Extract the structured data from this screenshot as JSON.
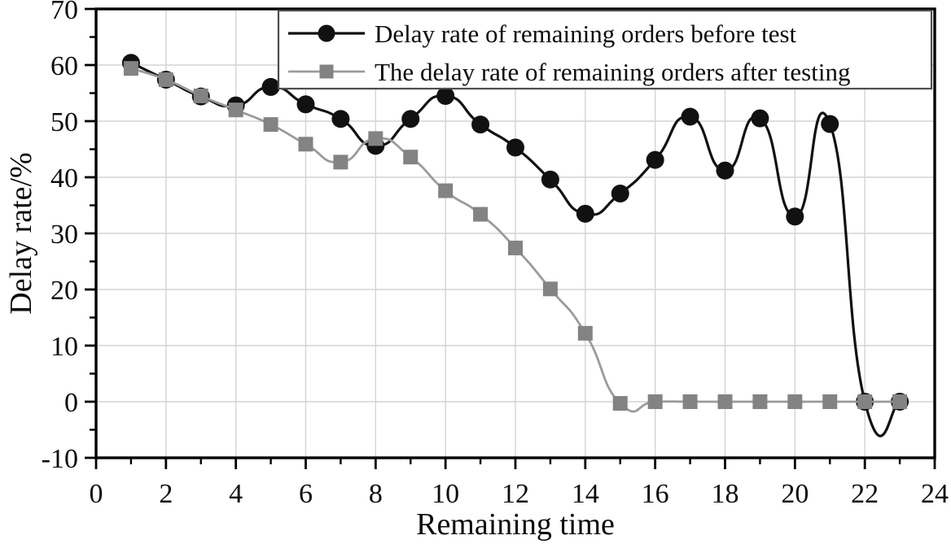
{
  "chart_data": {
    "type": "line",
    "title": "",
    "xlabel": "Remaining time",
    "ylabel": "Delay rate/%",
    "xlim": [
      0,
      24
    ],
    "ylim": [
      -10,
      70
    ],
    "x_ticks_major": [
      0,
      2,
      4,
      6,
      8,
      10,
      12,
      14,
      16,
      18,
      20,
      22,
      24
    ],
    "x_ticks_minor": [
      1,
      3,
      5,
      7,
      9,
      11,
      13,
      15,
      17,
      19,
      21,
      23
    ],
    "y_ticks_major": [
      -10,
      0,
      10,
      20,
      30,
      40,
      50,
      60,
      70
    ],
    "y_ticks_minor": [
      -5,
      5,
      15,
      25,
      35,
      45,
      55,
      65
    ],
    "grid": true,
    "grid_x_step": 2,
    "grid_y_step": 10,
    "legend_position": "top-inside",
    "x": [
      1,
      2,
      3,
      4,
      5,
      6,
      7,
      8,
      9,
      10,
      11,
      12,
      13,
      14,
      15,
      16,
      17,
      18,
      19,
      20,
      21,
      22,
      23
    ],
    "series": [
      {
        "name": "Delay rate of remaining orders before test",
        "marker": "circle",
        "line_color": "#111111",
        "marker_color": "#111111",
        "values": [
          60.4,
          57.4,
          54.4,
          52.8,
          56.1,
          53.0,
          50.4,
          45.6,
          50.4,
          54.5,
          49.4,
          45.3,
          39.6,
          33.5,
          37.1,
          43.1,
          50.8,
          41.2,
          50.5,
          33.0,
          49.5,
          0.0,
          0.0
        ]
      },
      {
        "name": "The delay rate of remaining orders after testing",
        "marker": "square",
        "line_color": "#9b9b9b",
        "marker_color": "#838383",
        "values": [
          59.4,
          57.4,
          54.5,
          52.0,
          49.4,
          45.9,
          42.7,
          46.9,
          43.6,
          37.6,
          33.4,
          27.4,
          20.1,
          12.2,
          -0.3,
          0.0,
          0.0,
          0.0,
          0.0,
          0.0,
          0.0,
          0.0,
          0.0
        ]
      }
    ]
  },
  "style_colors": {
    "axis": "#000000",
    "grid": "#d4d4d4",
    "legend_border": "#4d4d4d",
    "background": "#ffffff",
    "text": "#0c0c0c"
  }
}
